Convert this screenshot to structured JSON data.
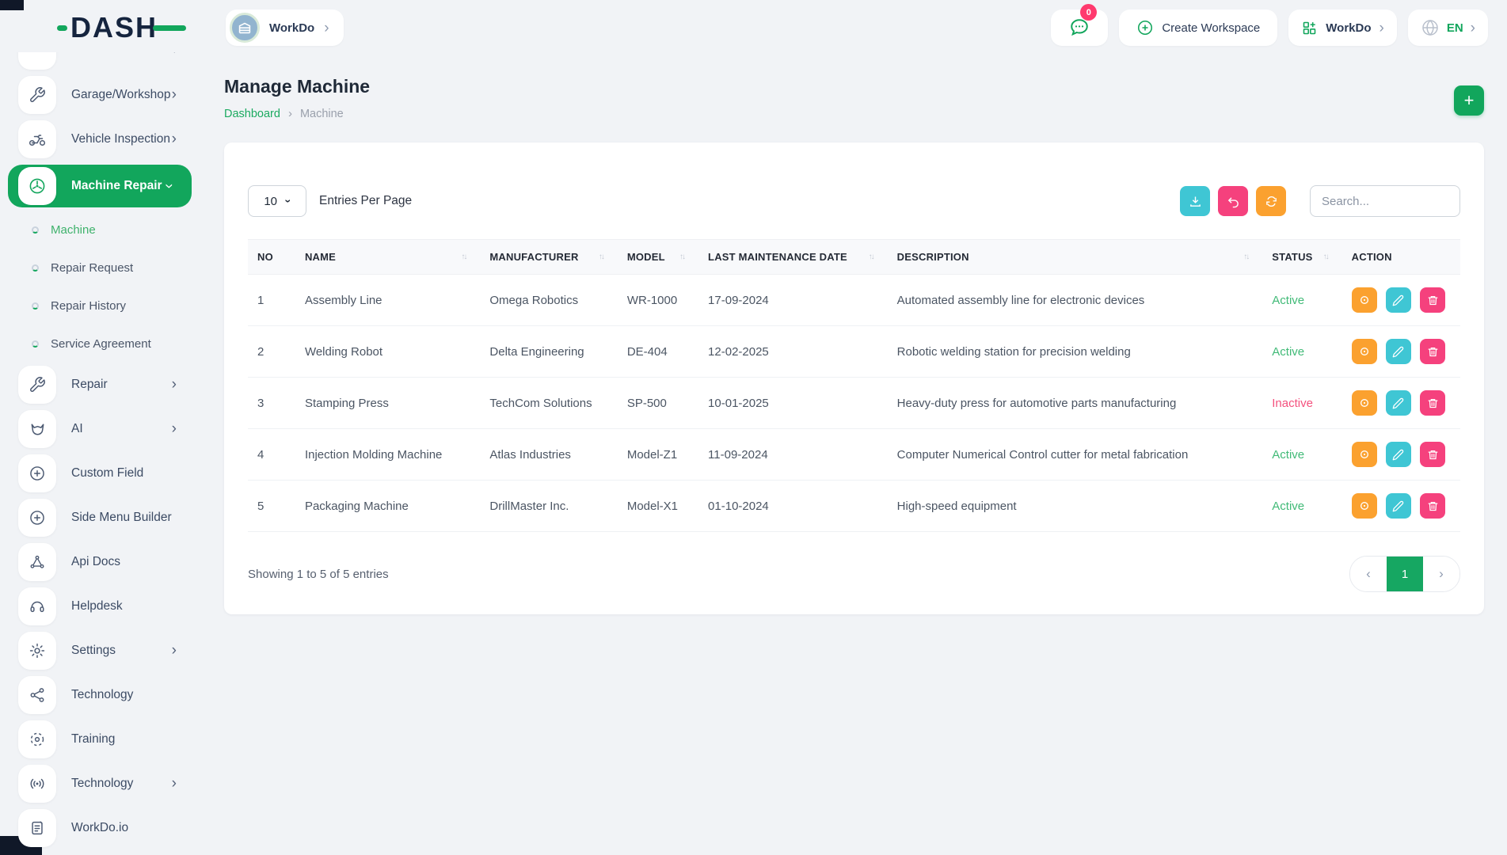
{
  "brand": {
    "logo_text": "DASH"
  },
  "topbar": {
    "workspace_pill_label": "WorkDo",
    "notification_count": "0",
    "create_workspace_label": "Create Workspace",
    "workspace_dropdown_label": "WorkDo",
    "language_label": "EN"
  },
  "sidebar": {
    "items": [
      {
        "label": "Garage/Workshop",
        "icon": "wrench-icon",
        "chevron": true
      },
      {
        "label": "Vehicle Inspection",
        "icon": "motorbike-icon",
        "chevron": true
      },
      {
        "label": "Machine Repair",
        "icon": "fan-icon",
        "chevron": true,
        "active": true,
        "expanded": true
      },
      {
        "label": "Machine",
        "type": "sub",
        "active": true
      },
      {
        "label": "Repair Request",
        "type": "sub"
      },
      {
        "label": "Repair History",
        "type": "sub"
      },
      {
        "label": "Service Agreement",
        "type": "sub"
      },
      {
        "label": "Repair",
        "icon": "wrench-icon",
        "chevron": true
      },
      {
        "label": "AI",
        "icon": "fox-icon",
        "chevron": true
      },
      {
        "label": "Custom Field",
        "icon": "plus-circle-icon"
      },
      {
        "label": "Side Menu Builder",
        "icon": "plus-circle-icon"
      },
      {
        "label": "Api Docs",
        "icon": "api-icon"
      },
      {
        "label": "Helpdesk",
        "icon": "headset-icon"
      },
      {
        "label": "Settings",
        "icon": "gear-icon",
        "chevron": true
      },
      {
        "label": "Technology",
        "icon": "hub-icon"
      },
      {
        "label": "Training",
        "icon": "target-icon"
      },
      {
        "label": "Technology",
        "icon": "broadcast-icon",
        "chevron": true
      },
      {
        "label": "WorkDo.io",
        "icon": "doc-icon"
      }
    ]
  },
  "page": {
    "title": "Manage Machine",
    "breadcrumb_home": "Dashboard",
    "breadcrumb_current": "Machine"
  },
  "toolbar": {
    "entries_value": "10",
    "entries_label": "Entries Per Page",
    "search_placeholder": "Search..."
  },
  "table": {
    "columns": [
      {
        "label": "NO",
        "sortable": false
      },
      {
        "label": "NAME",
        "sortable": true
      },
      {
        "label": "MANUFACTURER",
        "sortable": true
      },
      {
        "label": "MODEL",
        "sortable": true
      },
      {
        "label": "LAST MAINTENANCE DATE",
        "sortable": true
      },
      {
        "label": "DESCRIPTION",
        "sortable": true
      },
      {
        "label": "STATUS",
        "sortable": true
      },
      {
        "label": "ACTION",
        "sortable": false
      }
    ],
    "rows": [
      {
        "no": "1",
        "name": "Assembly Line",
        "manufacturer": "Omega Robotics",
        "model": "WR-1000",
        "last_maintenance_date": "17-09-2024",
        "description": "Automated assembly line for electronic devices",
        "status": "Active"
      },
      {
        "no": "2",
        "name": "Welding Robot",
        "manufacturer": "Delta Engineering",
        "model": "DE-404",
        "last_maintenance_date": "12-02-2025",
        "description": "Robotic welding station for precision welding",
        "status": "Active"
      },
      {
        "no": "3",
        "name": "Stamping Press",
        "manufacturer": "TechCom Solutions",
        "model": "SP-500",
        "last_maintenance_date": "10-01-2025",
        "description": "Heavy-duty press for automotive parts manufacturing",
        "status": "Inactive"
      },
      {
        "no": "4",
        "name": "Injection Molding Machine",
        "manufacturer": "Atlas Industries",
        "model": "Model-Z1",
        "last_maintenance_date": "11-09-2024",
        "description": "Computer Numerical Control cutter for metal fabrication",
        "status": "Active"
      },
      {
        "no": "5",
        "name": "Packaging Machine",
        "manufacturer": "DrillMaster Inc.",
        "model": "Model-X1",
        "last_maintenance_date": "01-10-2024",
        "description": "High-speed equipment",
        "status": "Active"
      }
    ]
  },
  "footer": {
    "showing_text": "Showing 1 to 5 of 5 entries",
    "current_page": "1"
  },
  "colors": {
    "primary_green": "#12a65c",
    "status_active": "#41ba77",
    "status_inactive": "#f4517e",
    "btn_teal": "#3fc6d4",
    "btn_pink": "#f5417d",
    "btn_orange": "#fba12f",
    "badge_pink": "#ff3a6e"
  }
}
